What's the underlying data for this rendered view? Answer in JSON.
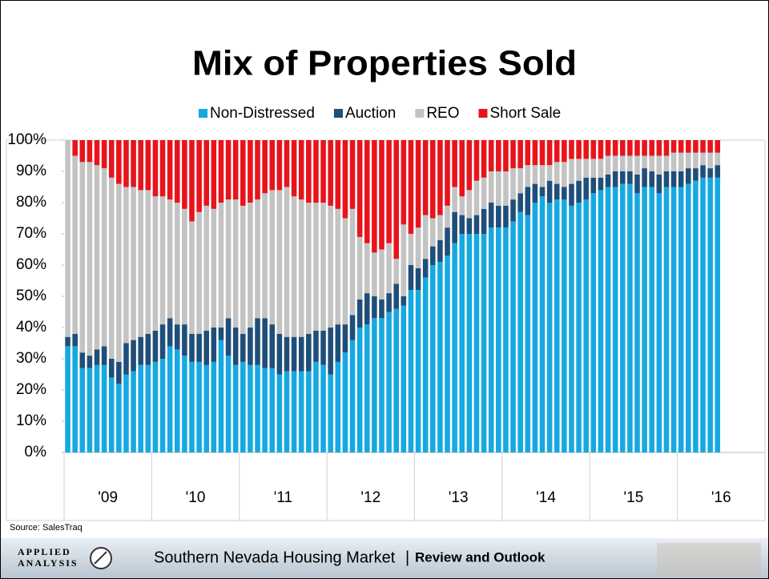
{
  "chart_data": {
    "type": "stacked_bar",
    "title": "Mix of Properties Sold",
    "categories": [
      "'09",
      null,
      null,
      null,
      null,
      null,
      null,
      null,
      null,
      null,
      null,
      null,
      "'10",
      null,
      null,
      null,
      null,
      null,
      null,
      null,
      null,
      null,
      null,
      null,
      "'11",
      null,
      null,
      null,
      null,
      null,
      null,
      null,
      null,
      null,
      null,
      null,
      "'12",
      null,
      null,
      null,
      null,
      null,
      null,
      null,
      null,
      null,
      null,
      null,
      "'13",
      null,
      null,
      null,
      null,
      null,
      null,
      null,
      null,
      null,
      null,
      null,
      "'14",
      null,
      null,
      null,
      null,
      null,
      null,
      null,
      null,
      null,
      null,
      null,
      "'15",
      null,
      null,
      null,
      null,
      null,
      null,
      null,
      null,
      null,
      null,
      null,
      "'16",
      null,
      null,
      null,
      null,
      null
    ],
    "series": [
      {
        "name": "Non-Distressed",
        "color": "#16a9e1",
        "values": [
          34,
          34,
          27,
          27,
          28,
          28,
          24,
          22,
          25,
          26,
          28,
          28,
          29,
          30,
          34,
          33,
          31,
          29,
          29,
          28,
          29,
          36,
          31,
          28,
          29,
          28,
          28,
          27,
          27,
          25,
          26,
          26,
          26,
          26,
          29,
          28,
          25,
          29,
          32,
          36,
          40,
          41,
          43,
          43,
          45,
          46,
          47,
          52,
          52,
          56,
          60,
          61,
          63,
          67,
          70,
          70,
          70,
          70,
          72,
          72,
          72,
          74,
          77,
          76,
          80,
          82,
          80,
          81,
          81,
          79,
          80,
          81,
          83,
          84,
          85,
          85,
          86,
          86,
          83,
          85,
          85,
          83,
          85,
          85,
          85,
          86,
          87,
          88,
          88,
          88
        ]
      },
      {
        "name": "Auction",
        "color": "#1f4e79",
        "values": [
          3,
          4,
          5,
          4,
          5,
          6,
          6,
          7,
          10,
          10,
          9,
          10,
          10,
          11,
          9,
          8,
          10,
          9,
          9,
          11,
          11,
          4,
          12,
          12,
          9,
          12,
          15,
          16,
          14,
          13,
          11,
          11,
          11,
          12,
          10,
          11,
          15,
          12,
          9,
          8,
          9,
          10,
          7,
          6,
          6,
          8,
          3,
          8,
          7,
          6,
          6,
          7,
          9,
          10,
          6,
          5,
          6,
          8,
          8,
          7,
          7,
          7,
          6,
          9,
          6,
          3,
          7,
          5,
          4,
          7,
          7,
          7,
          5,
          4,
          4,
          5,
          4,
          4,
          6,
          6,
          5,
          6,
          5,
          5,
          5,
          5,
          4,
          4,
          3,
          4
        ]
      },
      {
        "name": "REO",
        "color": "#c3c3c3",
        "values": [
          63,
          57,
          61,
          62,
          59,
          57,
          58,
          57,
          50,
          49,
          47,
          46,
          43,
          41,
          38,
          39,
          37,
          36,
          39,
          40,
          38,
          40,
          38,
          41,
          41,
          40,
          38,
          40,
          43,
          46,
          48,
          45,
          44,
          42,
          41,
          41,
          39,
          37,
          34,
          34,
          20,
          16,
          14,
          16,
          16,
          8,
          23,
          10,
          13,
          14,
          9,
          8,
          7,
          8,
          6,
          9,
          11,
          10,
          10,
          11,
          11,
          10,
          8,
          7,
          6,
          7,
          5,
          7,
          8,
          8,
          7,
          6,
          6,
          6,
          6,
          5,
          5,
          5,
          6,
          4,
          5,
          6,
          5,
          6,
          6,
          5,
          5,
          4,
          5,
          4
        ]
      },
      {
        "name": "Short Sale",
        "color": "#e8141b",
        "values": [
          0,
          5,
          7,
          7,
          8,
          9,
          12,
          14,
          15,
          15,
          16,
          16,
          18,
          18,
          19,
          20,
          22,
          26,
          23,
          21,
          22,
          20,
          19,
          19,
          21,
          20,
          19,
          17,
          16,
          16,
          15,
          18,
          19,
          20,
          20,
          20,
          21,
          22,
          25,
          22,
          31,
          33,
          36,
          35,
          33,
          38,
          27,
          30,
          28,
          24,
          25,
          24,
          21,
          15,
          18,
          16,
          13,
          12,
          10,
          10,
          10,
          9,
          9,
          8,
          8,
          8,
          8,
          7,
          7,
          6,
          6,
          6,
          6,
          6,
          5,
          5,
          5,
          5,
          5,
          5,
          5,
          5,
          5,
          4,
          4,
          4,
          4,
          4,
          4,
          4
        ]
      }
    ],
    "ylim": [
      0,
      100
    ],
    "yticks": [
      {
        "value": 0,
        "label": "0%"
      },
      {
        "value": 10,
        "label": "10%"
      },
      {
        "value": 20,
        "label": "20%"
      },
      {
        "value": 30,
        "label": "30%"
      },
      {
        "value": 40,
        "label": "40%"
      },
      {
        "value": 50,
        "label": "50%"
      },
      {
        "value": 60,
        "label": "60%"
      },
      {
        "value": 70,
        "label": "70%"
      },
      {
        "value": 80,
        "label": "80%"
      },
      {
        "value": 90,
        "label": "90%"
      },
      {
        "value": 100,
        "label": "100%"
      }
    ],
    "legend": "top",
    "grid": false,
    "source": "Source: SalesTraq"
  },
  "footer": {
    "logo": "APPLIED",
    "logo2": "ANALYSIS",
    "title": "Southern Nevada Housing Market",
    "separator": "|",
    "subtitle": "Review and Outlook"
  }
}
